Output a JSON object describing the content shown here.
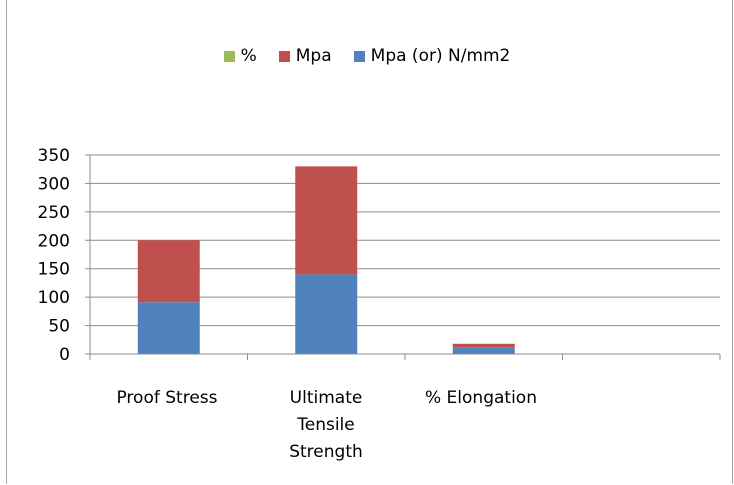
{
  "chart_data": {
    "type": "bar",
    "stacked": true,
    "categories": [
      "Proof Stress",
      "Ultimate Tensile Strength",
      "% Elongation",
      ""
    ],
    "category_lines": [
      [
        "Proof Stress"
      ],
      [
        "Ultimate",
        "Tensile",
        "Strength"
      ],
      [
        "% Elongation"
      ],
      []
    ],
    "series": [
      {
        "name": "Mpa (or) N/mm2",
        "color": "#4f81bd",
        "values": [
          91,
          140,
          12,
          0
        ]
      },
      {
        "name": "Mpa",
        "color": "#c0504d",
        "values": [
          109,
          190,
          6,
          0
        ]
      },
      {
        "name": "%",
        "color": "#9bbb59",
        "values": [
          0,
          0,
          0,
          0
        ]
      }
    ],
    "legend_order": [
      "%",
      "Mpa",
      "Mpa (or) N/mm2"
    ],
    "ylim": [
      0,
      350
    ],
    "yticks": [
      0,
      50,
      100,
      150,
      200,
      250,
      300,
      350
    ],
    "grid": true,
    "legend_position": "top"
  }
}
